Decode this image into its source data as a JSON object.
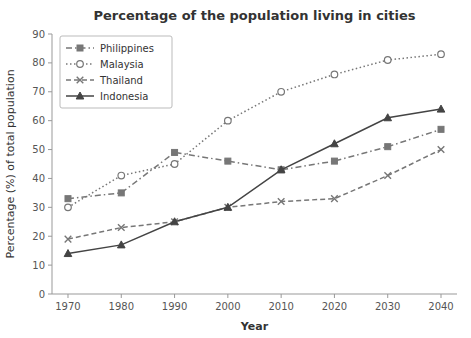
{
  "chart_data": {
    "type": "line",
    "title": "Percentage of the population living in cities",
    "xlabel": "Year",
    "ylabel": "Percentage (%) of total population",
    "x": [
      1970,
      1980,
      1990,
      2000,
      2010,
      2020,
      2030,
      2040
    ],
    "xlim": [
      1967,
      2043
    ],
    "xticks": [
      1970,
      1980,
      1990,
      2000,
      2010,
      2020,
      2030,
      2040
    ],
    "ylim": [
      0,
      90
    ],
    "yticks": [
      0,
      10,
      20,
      30,
      40,
      50,
      60,
      70,
      80,
      90
    ],
    "grid": false,
    "legend": "upper left",
    "series": [
      {
        "name": "Philippines",
        "color": "#777777",
        "marker": "square",
        "line_style": "dashdot",
        "values": [
          33,
          35,
          49,
          46,
          43,
          46,
          51,
          57
        ]
      },
      {
        "name": "Malaysia",
        "color": "#777777",
        "marker": "circle",
        "line_style": "dotted",
        "values": [
          30,
          41,
          45,
          60,
          70,
          76,
          81,
          83
        ]
      },
      {
        "name": "Thailand",
        "color": "#777777",
        "marker": "x",
        "line_style": "dashed",
        "values": [
          19,
          23,
          25,
          30,
          32,
          33,
          41,
          50
        ]
      },
      {
        "name": "Indonesia",
        "color": "#444444",
        "marker": "triangle",
        "line_style": "solid",
        "values": [
          14,
          17,
          25,
          30,
          43,
          52,
          61,
          64
        ]
      }
    ]
  }
}
